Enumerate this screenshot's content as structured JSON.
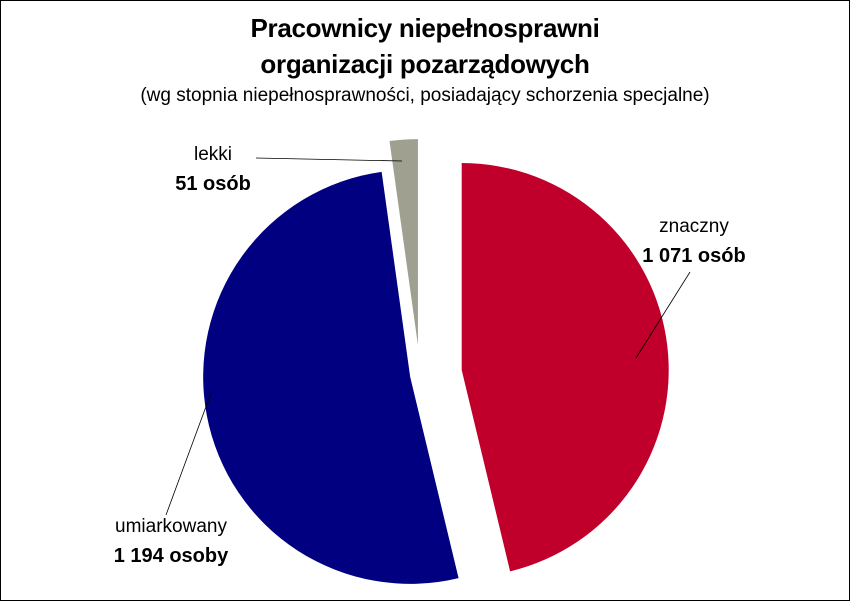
{
  "chart_data": {
    "type": "pie",
    "title": "Pracownicy niepełnosprawni",
    "title_line2": "organizacji pozarządowych",
    "subtitle": "(wg stopnia niepełnosprawności, posiadający schorzenia specjalne)",
    "slices": [
      {
        "category": "znaczny",
        "value": 1071,
        "label": "1 071 osób",
        "color": "#C0002A"
      },
      {
        "category": "umiarkowany",
        "value": 1194,
        "label": "1 194 osoby",
        "color": "#000080"
      },
      {
        "category": "lekki",
        "value": 51,
        "label": "51 osób",
        "color": "#A0A090"
      }
    ],
    "exploded": true,
    "legend": "none"
  }
}
